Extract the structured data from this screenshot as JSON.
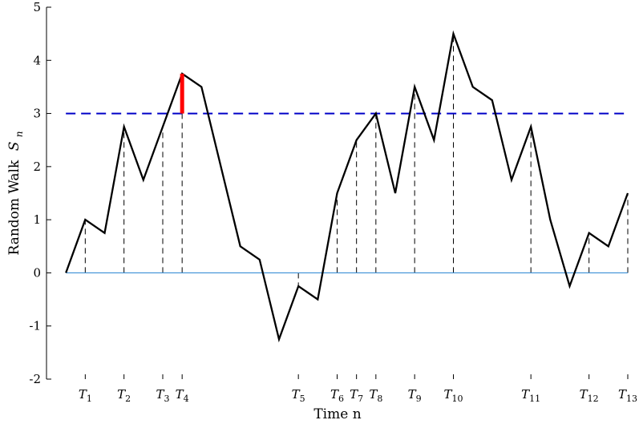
{
  "chart_data": {
    "type": "line",
    "title": "",
    "xlabel": "Time n",
    "ylabel": "Random Walk",
    "ylabel_symbol": "S",
    "ylabel_subscript": "n",
    "ylim": [
      -2,
      5
    ],
    "xlim": [
      -1,
      29
    ],
    "grid": false,
    "yticks": [
      -2,
      -1,
      0,
      1,
      2,
      3,
      4,
      5
    ],
    "ytick_labels": [
      "-2",
      "-1",
      "0",
      "1",
      "2",
      "3",
      "4",
      "5"
    ],
    "colors": {
      "walk": "#000000",
      "threshold": "#0000c8",
      "zero_line": "#3a8fd6",
      "crossing_marker": "#ff0000",
      "drop_lines": "#000000"
    },
    "series": [
      {
        "x": [
          0,
          1,
          2,
          3,
          4,
          5,
          6,
          7,
          8,
          9,
          10,
          11,
          12,
          13,
          14,
          15,
          16,
          17,
          18,
          19,
          20,
          21,
          22,
          23,
          24,
          25,
          26,
          27,
          28,
          29
        ],
        "values": [
          0,
          1,
          0.75,
          2.75,
          1.75,
          2.75,
          3.75,
          3.5,
          2,
          0.5,
          0.25,
          -1.25,
          -0.25,
          -0.5,
          1.5,
          2.5,
          3,
          1.5,
          3.5,
          2.5,
          4.5,
          3.5,
          3.25,
          1.75,
          2.75,
          1,
          -0.25,
          0.75,
          0.5,
          1.5
        ]
      }
    ],
    "threshold": 3,
    "crossing": {
      "x": 6,
      "y_from": 3,
      "y_to": 3.75
    },
    "t_markers": [
      {
        "x": 1,
        "label": "T",
        "sub": "1"
      },
      {
        "x": 3,
        "label": "T",
        "sub": "2"
      },
      {
        "x": 5,
        "label": "T",
        "sub": "3"
      },
      {
        "x": 6,
        "label": "T",
        "sub": "4"
      },
      {
        "x": 12,
        "label": "T",
        "sub": "5"
      },
      {
        "x": 14,
        "label": "T",
        "sub": "6"
      },
      {
        "x": 15,
        "label": "T",
        "sub": "7"
      },
      {
        "x": 16,
        "label": "T",
        "sub": "8"
      },
      {
        "x": 18,
        "label": "T",
        "sub": "9"
      },
      {
        "x": 20,
        "label": "T",
        "sub": "10"
      },
      {
        "x": 24,
        "label": "T",
        "sub": "11"
      },
      {
        "x": 27,
        "label": "T",
        "sub": "12"
      },
      {
        "x": 29,
        "label": "T",
        "sub": "13"
      }
    ]
  }
}
